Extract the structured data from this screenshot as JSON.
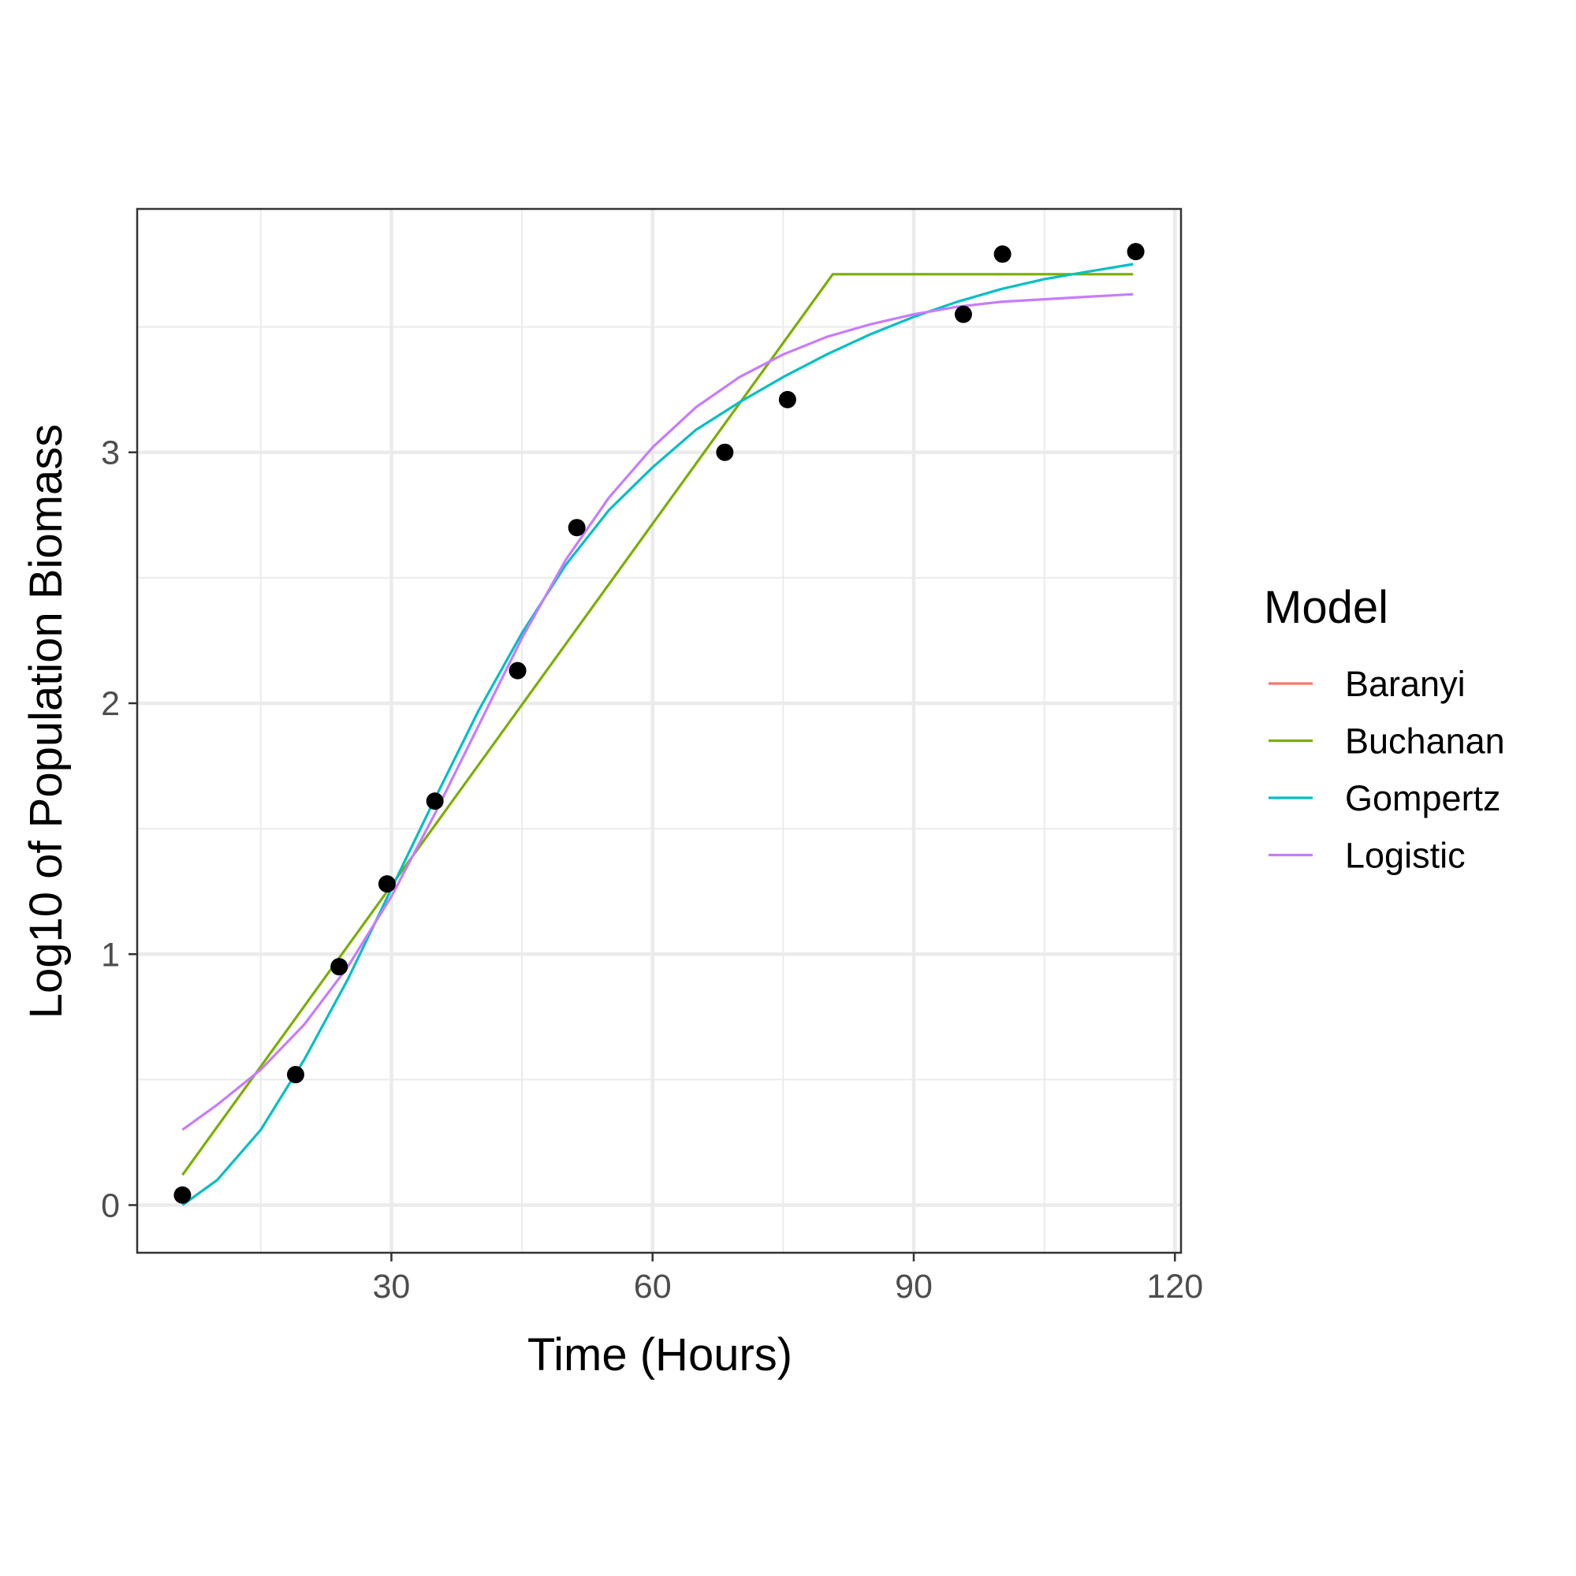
{
  "chart_data": {
    "type": "scatter",
    "xlabel": "Time (Hours)",
    "ylabel": "Log10 of Population Biomass",
    "xlim": [
      0.8,
      120.7
    ],
    "ylim": [
      -0.19,
      3.97
    ],
    "x_major_ticks": [
      30,
      60,
      90,
      120
    ],
    "x_minor_ticks": [
      15,
      45,
      75,
      105
    ],
    "y_major_ticks": [
      0,
      1,
      2,
      3
    ],
    "y_minor_ticks": [
      0.5,
      1.5,
      2.5,
      3.5
    ],
    "x_tick_labels": [
      "30",
      "60",
      "90",
      "120"
    ],
    "y_tick_labels": [
      "0",
      "1",
      "2",
      "3"
    ],
    "grid": true,
    "legend_title": "Model",
    "legend_position": "right",
    "points": [
      {
        "x": 6,
        "y": 0.04
      },
      {
        "x": 19,
        "y": 0.52
      },
      {
        "x": 24,
        "y": 0.95
      },
      {
        "x": 29.5,
        "y": 1.28
      },
      {
        "x": 35,
        "y": 1.61
      },
      {
        "x": 44.5,
        "y": 2.13
      },
      {
        "x": 51.3,
        "y": 2.7
      },
      {
        "x": 68.3,
        "y": 3.0
      },
      {
        "x": 75.5,
        "y": 3.21
      },
      {
        "x": 95.7,
        "y": 3.55
      },
      {
        "x": 100.2,
        "y": 3.79
      },
      {
        "x": 115.5,
        "y": 3.8
      }
    ],
    "series": [
      {
        "name": "Baranyi",
        "color": "#F8766D",
        "x": [],
        "y": []
      },
      {
        "name": "Buchanan",
        "color": "#7CAE00",
        "x": [
          6,
          80.7,
          115.2
        ],
        "y": [
          0.12,
          3.71,
          3.71
        ]
      },
      {
        "name": "Gompertz",
        "color": "#00BFC4",
        "x": [
          6,
          10,
          15,
          20,
          25,
          30,
          35,
          40,
          45,
          50,
          55,
          60,
          65,
          70,
          75,
          80,
          85,
          90,
          95,
          100,
          105,
          110,
          115.2
        ],
        "y": [
          0.0,
          0.1,
          0.3,
          0.58,
          0.9,
          1.26,
          1.62,
          1.97,
          2.28,
          2.55,
          2.77,
          2.94,
          3.09,
          3.2,
          3.3,
          3.39,
          3.47,
          3.54,
          3.6,
          3.65,
          3.69,
          3.72,
          3.75
        ]
      },
      {
        "name": "Logistic",
        "color": "#C77CFF",
        "x": [
          6,
          10,
          15,
          20,
          25,
          30,
          35,
          40,
          45,
          50,
          55,
          60,
          65,
          70,
          75,
          80,
          85,
          90,
          95,
          100,
          105,
          110,
          115.2
        ],
        "y": [
          0.3,
          0.4,
          0.54,
          0.72,
          0.95,
          1.23,
          1.56,
          1.91,
          2.26,
          2.57,
          2.82,
          3.02,
          3.18,
          3.3,
          3.39,
          3.46,
          3.51,
          3.55,
          3.58,
          3.6,
          3.61,
          3.62,
          3.63
        ]
      }
    ]
  }
}
